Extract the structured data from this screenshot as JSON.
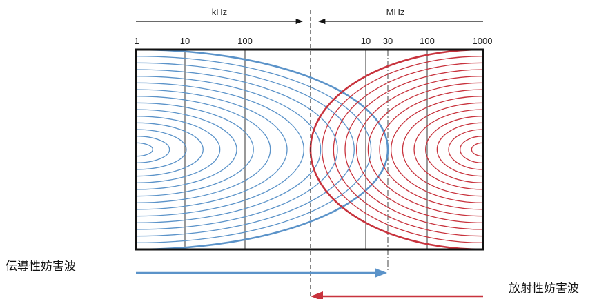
{
  "diagram": {
    "band_labels": {
      "khz": "kHz",
      "mhz": "MHz"
    },
    "ticks_khz": [
      "1",
      "10",
      "100"
    ],
    "ticks_mhz": [
      "10",
      "30",
      "100",
      "1000"
    ],
    "labels": {
      "conducted": "伝導性妨害波",
      "radiated": "放射性妨害波"
    },
    "colors": {
      "conducted": "#5b93c9",
      "radiated": "#c8333d",
      "frame": "#111111",
      "gridline": "#555555"
    }
  }
}
